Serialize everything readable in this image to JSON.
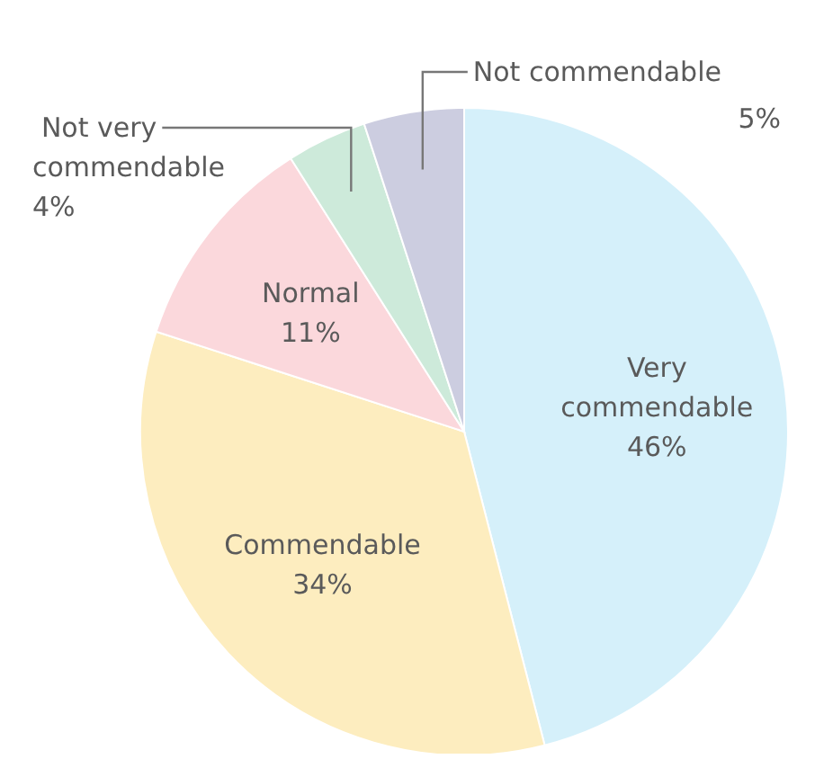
{
  "chart_data": {
    "type": "pie",
    "categories": [
      "Very commendable",
      "Commendable",
      "Normal",
      "Not very commendable",
      "Not commendable"
    ],
    "values": [
      46,
      34,
      11,
      4,
      5
    ],
    "value_labels": [
      "46%",
      "34%",
      "11%",
      "4%",
      "5%"
    ],
    "colors": [
      "#d5f0fa",
      "#fdedbf",
      "#fbd8dc",
      "#cdeada",
      "#cccde0"
    ]
  }
}
